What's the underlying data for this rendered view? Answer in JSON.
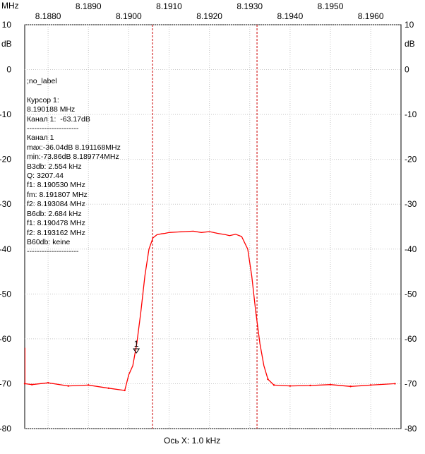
{
  "chart_data": {
    "type": "line",
    "x_unit": "MHz",
    "y_unit": "dB",
    "xlabel": "Ось X: 1.0 kHz",
    "xlim": [
      8.18742,
      8.19675
    ],
    "ylim": [
      -80,
      10
    ],
    "x_ticks": [
      "8.1880",
      "8.1890",
      "8.1900",
      "8.1910",
      "8.1920",
      "8.1930",
      "8.1940",
      "8.1950",
      "8.1960"
    ],
    "x_tick_rows": [
      [
        "8.1890",
        "8.1910",
        "8.1930",
        "8.1950"
      ],
      [
        "8.1880",
        "8.1900",
        "8.1920",
        "8.1940",
        "8.1960"
      ]
    ],
    "y_ticks": [
      10,
      0,
      -10,
      -20,
      -30,
      -40,
      -50,
      -60,
      -70,
      -80
    ],
    "grid": true,
    "series": [
      {
        "color": "#ff0000",
        "x": [
          8.18742,
          8.1876,
          8.188,
          8.1885,
          8.189,
          8.1895,
          8.1899,
          8.19,
          8.1901,
          8.1902,
          8.1903,
          8.1904,
          8.1905,
          8.1906,
          8.1907,
          8.1908,
          8.1909,
          8.191,
          8.1912,
          8.1914,
          8.1916,
          8.1918,
          8.192,
          8.1922,
          8.1924,
          8.1925,
          8.19265,
          8.1928,
          8.19295,
          8.19305,
          8.19315,
          8.19325,
          8.19335,
          8.19345,
          8.1936,
          8.194,
          8.1945,
          8.195,
          8.1955,
          8.196,
          8.1966
        ],
        "y": [
          -70,
          -70.2,
          -69.8,
          -70.5,
          -70.3,
          -71,
          -71.5,
          -68,
          -66,
          -61,
          -54,
          -46,
          -40,
          -37.5,
          -36.8,
          -36.6,
          -36.5,
          -36.3,
          -36.2,
          -36.1,
          -36.0,
          -36.3,
          -36.1,
          -36.5,
          -36.8,
          -37.0,
          -36.7,
          -37.2,
          -40,
          -46,
          -54,
          -61,
          -66,
          -69,
          -70.3,
          -70.5,
          -70.4,
          -70.2,
          -70.6,
          -70.3,
          -70.0
        ]
      }
    ],
    "cursor_lines_x": [
      8.19059,
      8.19318
    ],
    "marker": {
      "label": "1",
      "x": 8.190188,
      "y": -63.17
    },
    "annotations": [
      ";no_label",
      "",
      "Курсор 1:",
      "8.190188 MHz",
      "Канал 1:  -63.17dB",
      "---------------------",
      "Канал 1",
      "max:-36.04dB 8.191168MHz",
      "min:-73.86dB 8.189774MHz",
      "B3db: 2.554 kHz",
      "Q: 3207.44",
      "f1: 8.190530 MHz",
      "fm: 8.191807 MHz",
      "f2: 8.193084 MHz",
      "B6db: 2.684 kHz",
      "f1: 8.190478 MHz",
      "f2: 8.193162 MHz",
      "B60db: keine",
      "---------------------"
    ]
  }
}
